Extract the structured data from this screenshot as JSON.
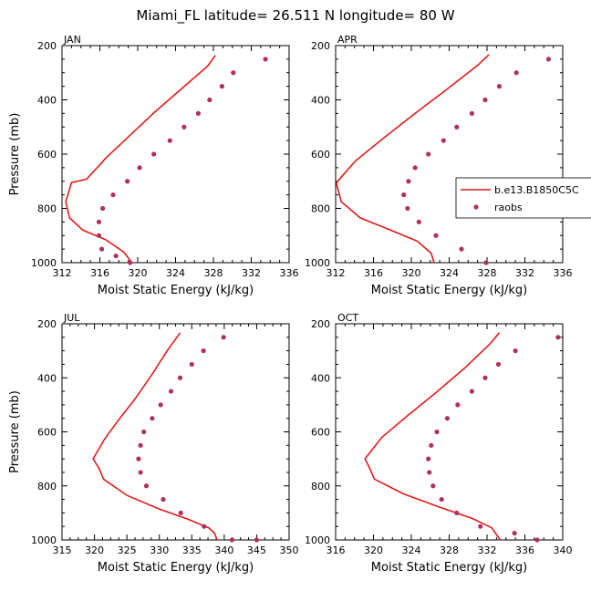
{
  "figure": {
    "title": "Miami_FL  latitude= 26.511 N longitude= 80 W",
    "model_color": "#e31a1c",
    "obs_color": "#b03060"
  },
  "legend": {
    "model_label": "b.e13.B1850C5C",
    "obs_label": "raobs"
  },
  "chart_data": [
    {
      "type": "line",
      "panel_label": "JAN",
      "xlabel": "Moist Static Energy (kJ/kg)",
      "ylabel": "Pressure (mb)",
      "xlim": [
        312,
        336
      ],
      "ylim": [
        1000,
        200
      ],
      "xticks": [
        312,
        316,
        320,
        324,
        328,
        332,
        336
      ],
      "yticks": [
        200,
        400,
        600,
        800,
        1000
      ],
      "legend_shown": false,
      "series": [
        {
          "name": "b.e13.B1850C5C",
          "style": "line",
          "x": [
            328.2,
            327.4,
            324.6,
            321.8,
            319.2,
            316.7,
            314.6,
            313.0,
            312.4,
            312.8,
            314.2,
            316.6,
            318.5,
            319.4
          ],
          "y": [
            236,
            275,
            360,
            445,
            530,
            612,
            692,
            705,
            775,
            835,
            880,
            915,
            960,
            1000
          ]
        },
        {
          "name": "raobs",
          "style": "markers",
          "x": [
            333.5,
            330.1,
            328.9,
            327.6,
            326.4,
            324.9,
            323.4,
            321.7,
            320.2,
            318.9,
            317.4,
            316.3,
            315.9,
            315.9,
            316.2,
            317.7,
            319.2
          ],
          "y": [
            250,
            300,
            350,
            400,
            450,
            500,
            550,
            600,
            650,
            700,
            750,
            800,
            850,
            900,
            950,
            975,
            1000
          ]
        }
      ]
    },
    {
      "type": "line",
      "panel_label": "APR",
      "xlabel": "Moist Static Energy (kJ/kg)",
      "ylabel": "",
      "xlim": [
        312,
        336
      ],
      "ylim": [
        1000,
        200
      ],
      "xticks": [
        312,
        316,
        320,
        324,
        328,
        332,
        336
      ],
      "yticks": [
        200,
        400,
        600,
        800,
        1000
      ],
      "legend_shown": true,
      "legend_position": "right",
      "series": [
        {
          "name": "b.e13.B1850C5C",
          "style": "line",
          "x": [
            328.2,
            327.1,
            323.8,
            320.4,
            317.1,
            314.1,
            312.2,
            312.1,
            312.6,
            314.6,
            317.8,
            320.6,
            322.1,
            322.4
          ],
          "y": [
            233,
            270,
            360,
            450,
            540,
            625,
            700,
            710,
            775,
            835,
            880,
            920,
            965,
            1000
          ]
        },
        {
          "name": "raobs",
          "style": "markers",
          "x": [
            334.5,
            331.1,
            329.3,
            327.8,
            326.4,
            324.8,
            323.4,
            321.8,
            320.4,
            319.7,
            319.2,
            319.6,
            320.8,
            322.6,
            325.3,
            327.9
          ],
          "y": [
            250,
            300,
            350,
            400,
            450,
            500,
            550,
            600,
            650,
            700,
            750,
            800,
            850,
            900,
            950,
            1000
          ]
        }
      ]
    },
    {
      "type": "line",
      "panel_label": "JUL",
      "xlabel": "Moist Static Energy (kJ/kg)",
      "ylabel": "Pressure (mb)",
      "xlim": [
        315,
        350
      ],
      "ylim": [
        1000,
        200
      ],
      "xticks": [
        315,
        320,
        325,
        330,
        335,
        340,
        345,
        350
      ],
      "yticks": [
        200,
        400,
        600,
        800,
        1000
      ],
      "legend_shown": false,
      "series": [
        {
          "name": "b.e13.B1850C5C",
          "style": "line",
          "x": [
            333.2,
            331.2,
            328.8,
            326.2,
            323.9,
            321.6,
            319.8,
            320.7,
            321.4,
            325.0,
            329.9,
            334.6,
            337.6,
            338.5,
            338.9
          ],
          "y": [
            233,
            300,
            390,
            480,
            550,
            625,
            700,
            735,
            775,
            835,
            885,
            925,
            955,
            975,
            1000
          ]
        },
        {
          "name": "raobs",
          "style": "markers",
          "x": [
            339.9,
            336.8,
            335.0,
            333.2,
            331.8,
            330.2,
            328.9,
            327.6,
            327.1,
            326.8,
            327.1,
            328.0,
            330.6,
            333.3,
            336.9,
            341.2,
            345.0
          ],
          "y": [
            250,
            300,
            350,
            400,
            450,
            500,
            550,
            600,
            650,
            700,
            750,
            800,
            850,
            900,
            950,
            1000,
            1000
          ]
        }
      ]
    },
    {
      "type": "line",
      "panel_label": "OCT",
      "xlabel": "Moist Static Energy (kJ/kg)",
      "ylabel": "",
      "xlim": [
        316,
        340
      ],
      "ylim": [
        1000,
        200
      ],
      "xticks": [
        316,
        320,
        324,
        328,
        332,
        336,
        340
      ],
      "yticks": [
        200,
        400,
        600,
        800,
        1000
      ],
      "legend_shown": false,
      "series": [
        {
          "name": "b.e13.B1850C5C",
          "style": "line",
          "x": [
            333.3,
            332.3,
            329.6,
            326.6,
            323.6,
            320.9,
            319.1,
            319.6,
            320.1,
            323.2,
            327.1,
            330.4,
            332.5,
            333.4
          ],
          "y": [
            233,
            275,
            365,
            455,
            540,
            620,
            700,
            735,
            775,
            830,
            880,
            920,
            955,
            1000
          ]
        },
        {
          "name": "raobs",
          "style": "markers",
          "x": [
            339.5,
            335.0,
            333.2,
            331.8,
            330.4,
            328.9,
            327.8,
            326.7,
            326.1,
            325.8,
            325.9,
            326.3,
            327.2,
            328.8,
            331.3,
            334.9,
            337.3
          ],
          "y": [
            250,
            300,
            350,
            400,
            450,
            500,
            550,
            600,
            650,
            700,
            750,
            800,
            850,
            900,
            950,
            975,
            1000
          ]
        }
      ]
    }
  ]
}
